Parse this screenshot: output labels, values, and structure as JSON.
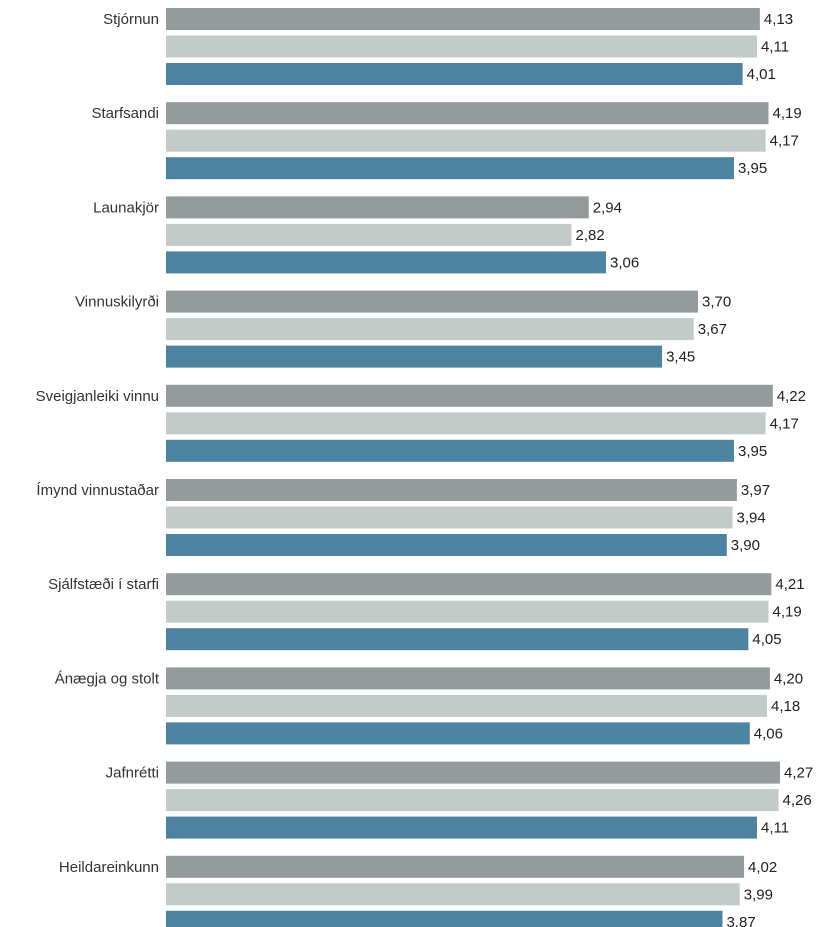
{
  "chart_data": {
    "type": "bar",
    "orientation": "horizontal",
    "categories": [
      "Stjórnun",
      "Starfsandi",
      "Launakjör",
      "Vinnuskilyrði",
      "Sveigjanleiki vinnu",
      "Ímynd vinnustaðar",
      "Sjálfstæði í starfi",
      "Ánægja og stolt",
      "Jafnrétti",
      "Heildareinkunn"
    ],
    "series": [
      {
        "color": "#959b9d",
        "values": [
          4.13,
          4.19,
          2.94,
          3.7,
          4.22,
          3.97,
          4.21,
          4.2,
          4.27,
          4.02
        ]
      },
      {
        "color": "#c3cbc9",
        "values": [
          4.11,
          4.17,
          2.82,
          3.67,
          4.17,
          3.94,
          4.19,
          4.18,
          4.26,
          3.99
        ]
      },
      {
        "color": "#4d83a0",
        "values": [
          4.01,
          3.95,
          3.06,
          3.45,
          3.95,
          3.9,
          4.05,
          4.06,
          4.11,
          3.87
        ]
      }
    ],
    "value_labels": [
      [
        "4,13",
        "4,11",
        "4,01"
      ],
      [
        "4,19",
        "4,17",
        "3,95"
      ],
      [
        "2,94",
        "2,82",
        "3,06"
      ],
      [
        "3,70",
        "3,67",
        "3,45"
      ],
      [
        "4,22",
        "4,17",
        "3,95"
      ],
      [
        "3,97",
        "3,94",
        "3,90"
      ],
      [
        "4,21",
        "4,19",
        "4,05"
      ],
      [
        "4,20",
        "4,18",
        "4,06"
      ],
      [
        "4,27",
        "4,26",
        "4,11"
      ],
      [
        "4,02",
        "3,99",
        "3,87"
      ]
    ],
    "xlim": [
      0,
      4.27
    ],
    "grid": false,
    "legend": "none"
  }
}
